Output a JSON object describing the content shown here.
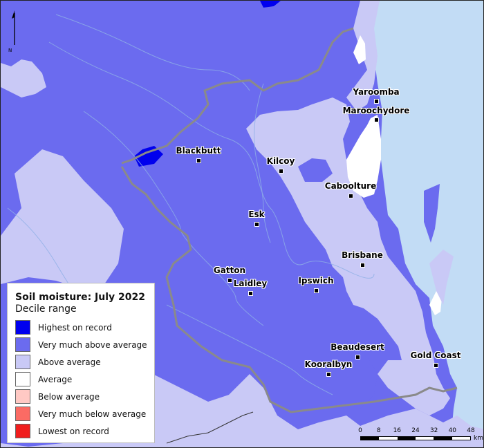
{
  "map": {
    "north_letter": "N",
    "towns": [
      {
        "name": "Yaroomba"
      },
      {
        "name": "Maroochydore"
      },
      {
        "name": "Blackbutt"
      },
      {
        "name": "Kilcoy"
      },
      {
        "name": "Caboolture"
      },
      {
        "name": "Esk"
      },
      {
        "name": "Brisbane"
      },
      {
        "name": "Gatton"
      },
      {
        "name": "Laidley"
      },
      {
        "name": "Ipswich"
      },
      {
        "name": "Beaudesert"
      },
      {
        "name": "Gold Coast"
      },
      {
        "name": "Kooralbyn"
      }
    ]
  },
  "legend": {
    "title": "Soil moisture: July 2022",
    "subtitle": "Decile range",
    "items": [
      {
        "label": "Highest on record",
        "color": "#0000ee"
      },
      {
        "label": "Very much above average",
        "color": "#6b6bef"
      },
      {
        "label": "Above average",
        "color": "#c9c9f6"
      },
      {
        "label": "Average",
        "color": "#ffffff"
      },
      {
        "label": "Below average",
        "color": "#ffc9c4"
      },
      {
        "label": "Very much below average",
        "color": "#fb6b64"
      },
      {
        "label": "Lowest on record",
        "color": "#f01d1d"
      }
    ]
  },
  "scale_bar": {
    "ticks": [
      "0",
      "8",
      "16",
      "24",
      "32",
      "40",
      "48"
    ],
    "unit": "km"
  },
  "colors": {
    "ocean": "#c2dcf5",
    "very_much_above": "#6b6bef",
    "above": "#c9c9f6",
    "highest": "#0000ee",
    "average": "#ffffff",
    "boundary": "#8a8a8a",
    "rivers": "#8fb0e6"
  }
}
